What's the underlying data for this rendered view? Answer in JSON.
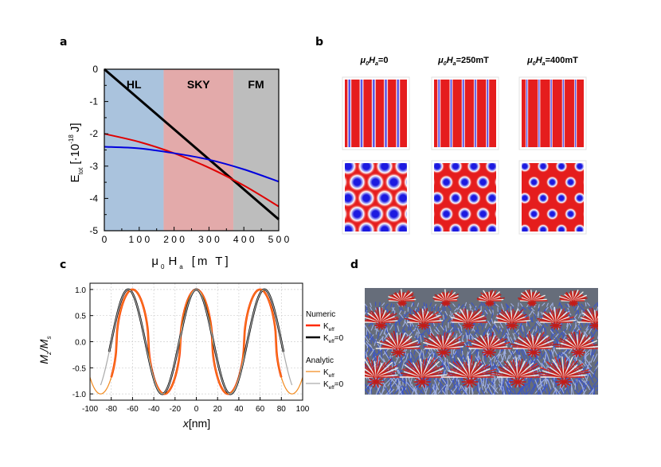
{
  "panel_labels": {
    "a": "a",
    "b": "b",
    "c": "c",
    "d": "d"
  },
  "chart_data": [
    {
      "type": "line",
      "panel": "a",
      "title": "",
      "xlabel": "μ 0 H a [m T]",
      "xlabel_parts": {
        "mu": "μ",
        "sub0": "0",
        "H": "H",
        "suba": "a",
        "unit": "[m T]"
      },
      "ylabel_parts": {
        "E": "E",
        "sub": "tot",
        "unit_open": "[·10",
        "exp": "-18",
        "unit_close": "J]"
      },
      "xlim": [
        0,
        500
      ],
      "ylim": [
        -5,
        0
      ],
      "xticks": [
        0,
        100,
        200,
        300,
        400,
        500
      ],
      "xtick_labels": [
        "0",
        "1 0 0",
        "2 0 0",
        "3 0 0",
        "4 0 0",
        "5 0 0"
      ],
      "yticks": [
        0,
        -1,
        -2,
        -3,
        -4,
        -5
      ],
      "ytick_labels": [
        "0",
        "-1",
        "-2",
        "-3",
        "-4",
        "-5"
      ],
      "regions": [
        {
          "label": "HL",
          "from": 0,
          "to": 170,
          "color": "#aac3dd"
        },
        {
          "label": "SKY",
          "from": 170,
          "to": 370,
          "color": "#e3aaaa"
        },
        {
          "label": "FM",
          "from": 370,
          "to": 500,
          "color": "#bdbdbd"
        }
      ],
      "series": [
        {
          "name": "black",
          "color": "#000000",
          "width": 3,
          "x": [
            0,
            100,
            200,
            300,
            400,
            500
          ],
          "y": [
            0,
            -0.93,
            -1.86,
            -2.79,
            -3.72,
            -4.65
          ]
        },
        {
          "name": "red",
          "color": "#e00000",
          "width": 2,
          "x": [
            0,
            100,
            200,
            300,
            400,
            500
          ],
          "y": [
            -2.0,
            -2.25,
            -2.6,
            -3.05,
            -3.6,
            -4.25
          ]
        },
        {
          "name": "blue",
          "color": "#0000dd",
          "width": 2,
          "x": [
            0,
            100,
            200,
            300,
            400,
            500
          ],
          "y": [
            -2.4,
            -2.45,
            -2.6,
            -2.8,
            -3.1,
            -3.48
          ]
        }
      ]
    },
    {
      "type": "line",
      "panel": "c",
      "title": "",
      "xlabel_parts": {
        "x": "x",
        "unit": "[nm]"
      },
      "ylabel_parts": {
        "M": "M",
        "sub_z": "z",
        "slash": "/",
        "M2": "M",
        "sub_s": "s"
      },
      "xlim": [
        -100,
        100
      ],
      "ylim": [
        -1.12,
        1.12
      ],
      "xticks": [
        -100,
        -80,
        -60,
        -40,
        -20,
        0,
        20,
        40,
        60,
        80,
        100
      ],
      "xtick_labels": [
        "-100",
        "-80",
        "-60",
        "-40",
        "-20",
        "0",
        "20",
        "40",
        "60",
        "80",
        "100"
      ],
      "yticks": [
        1.0,
        0.5,
        0.0,
        -0.5,
        -1.0
      ],
      "ytick_labels": [
        "1.0",
        "0.5",
        "0.0",
        "-0.5",
        "-1.0"
      ],
      "series": [
        {
          "name": "Numeric Keff",
          "color": "#ff2a00",
          "width": 2.6,
          "model": "square",
          "period": 60,
          "peaks": [
            -60,
            0,
            60
          ],
          "x_range": [
            -80,
            80
          ]
        },
        {
          "name": "Numeric Keff=0",
          "color": "#000000",
          "width": 2.6,
          "model": "cosine",
          "period": 64,
          "peaks": [
            -64,
            0,
            64
          ],
          "x_range": [
            -82,
            82
          ]
        },
        {
          "name": "Analytic Keff",
          "color": "#f28a1e",
          "width": 1.2,
          "model": "square",
          "period": 60,
          "peaks": [
            -60,
            0,
            60
          ],
          "x_range": [
            -100,
            100
          ]
        },
        {
          "name": "Analytic Keff=0",
          "color": "#aaaaaa",
          "width": 1.2,
          "model": "cosine",
          "period": 64,
          "peaks": [
            -64,
            0,
            64
          ],
          "x_range": [
            -90,
            90
          ]
        }
      ],
      "legend": {
        "numeric_title": "Numeric",
        "analytic_title": "Analytic",
        "k": "K",
        "sub": "eff",
        "eq0": "=0"
      }
    }
  ],
  "panel_b": {
    "headers": [
      {
        "mu": "μ",
        "sub0": "0",
        "H": "H",
        "suba": "a",
        "value": "=0"
      },
      {
        "mu": "μ",
        "sub0": "0",
        "H": "H",
        "suba": "a",
        "value": "=250mT"
      },
      {
        "mu": "μ",
        "sub0": "0",
        "H": "H",
        "suba": "a",
        "value": "=400mT"
      }
    ],
    "stripe_colors": {
      "red": "#e51d1d",
      "blue": "#1c1ae0",
      "white": "#ffffff"
    },
    "stripe_red_fraction": [
      0.5,
      0.62,
      0.72
    ],
    "skyrmion_core_scale": [
      0.82,
      0.62,
      0.5
    ]
  },
  "panel_d": {
    "background": "#666d7a"
  }
}
